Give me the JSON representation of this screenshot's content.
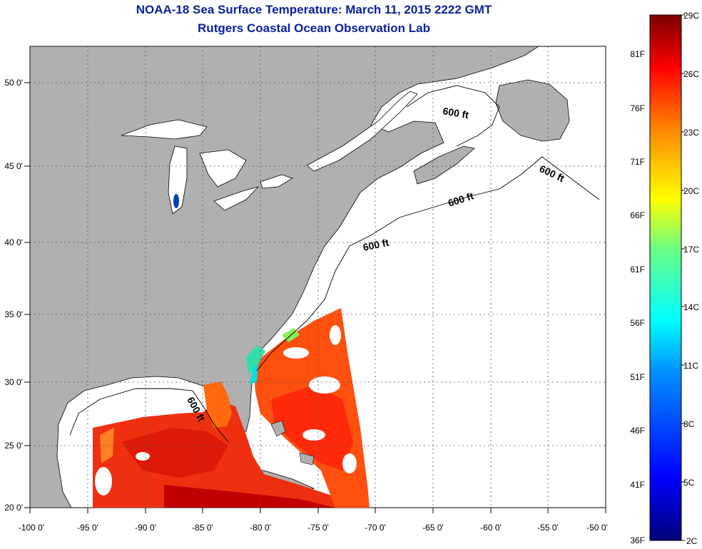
{
  "title": "NOAA-18 Sea Surface Temperature:  March 11, 2015 2222 GMT",
  "subtitle": "Rutgers Coastal Ocean Observation Lab",
  "map": {
    "lon_ticks": [
      "-100 0'",
      "-95 0'",
      "-90 0'",
      "-85 0'",
      "-80 0'",
      "-75 0'",
      "-70 0'",
      "-65 0'",
      "-60 0'",
      "-55 0'",
      "-50 0'"
    ],
    "lat_ticks": [
      "50 0'",
      "45 0'",
      "40 0'",
      "35 0'",
      "30 0'",
      "25 0'",
      "20 0'"
    ],
    "contour_labels": [
      "600 ft",
      "600 ft",
      "600 ft",
      "600 ft",
      "600 ft"
    ],
    "colors": {
      "land": "#b0b0b0",
      "water": "#ffffff",
      "grid": "#555555"
    }
  },
  "colorbar": {
    "celsius_labels": [
      "29C",
      "26C",
      "23C",
      "20C",
      "17C",
      "14C",
      "11C",
      "8C",
      "5C",
      "2C"
    ],
    "fahrenheit_labels": [
      "81F",
      "76F",
      "71F",
      "66F",
      "61F",
      "56F",
      "51F",
      "46F",
      "41F",
      "36F"
    ]
  }
}
